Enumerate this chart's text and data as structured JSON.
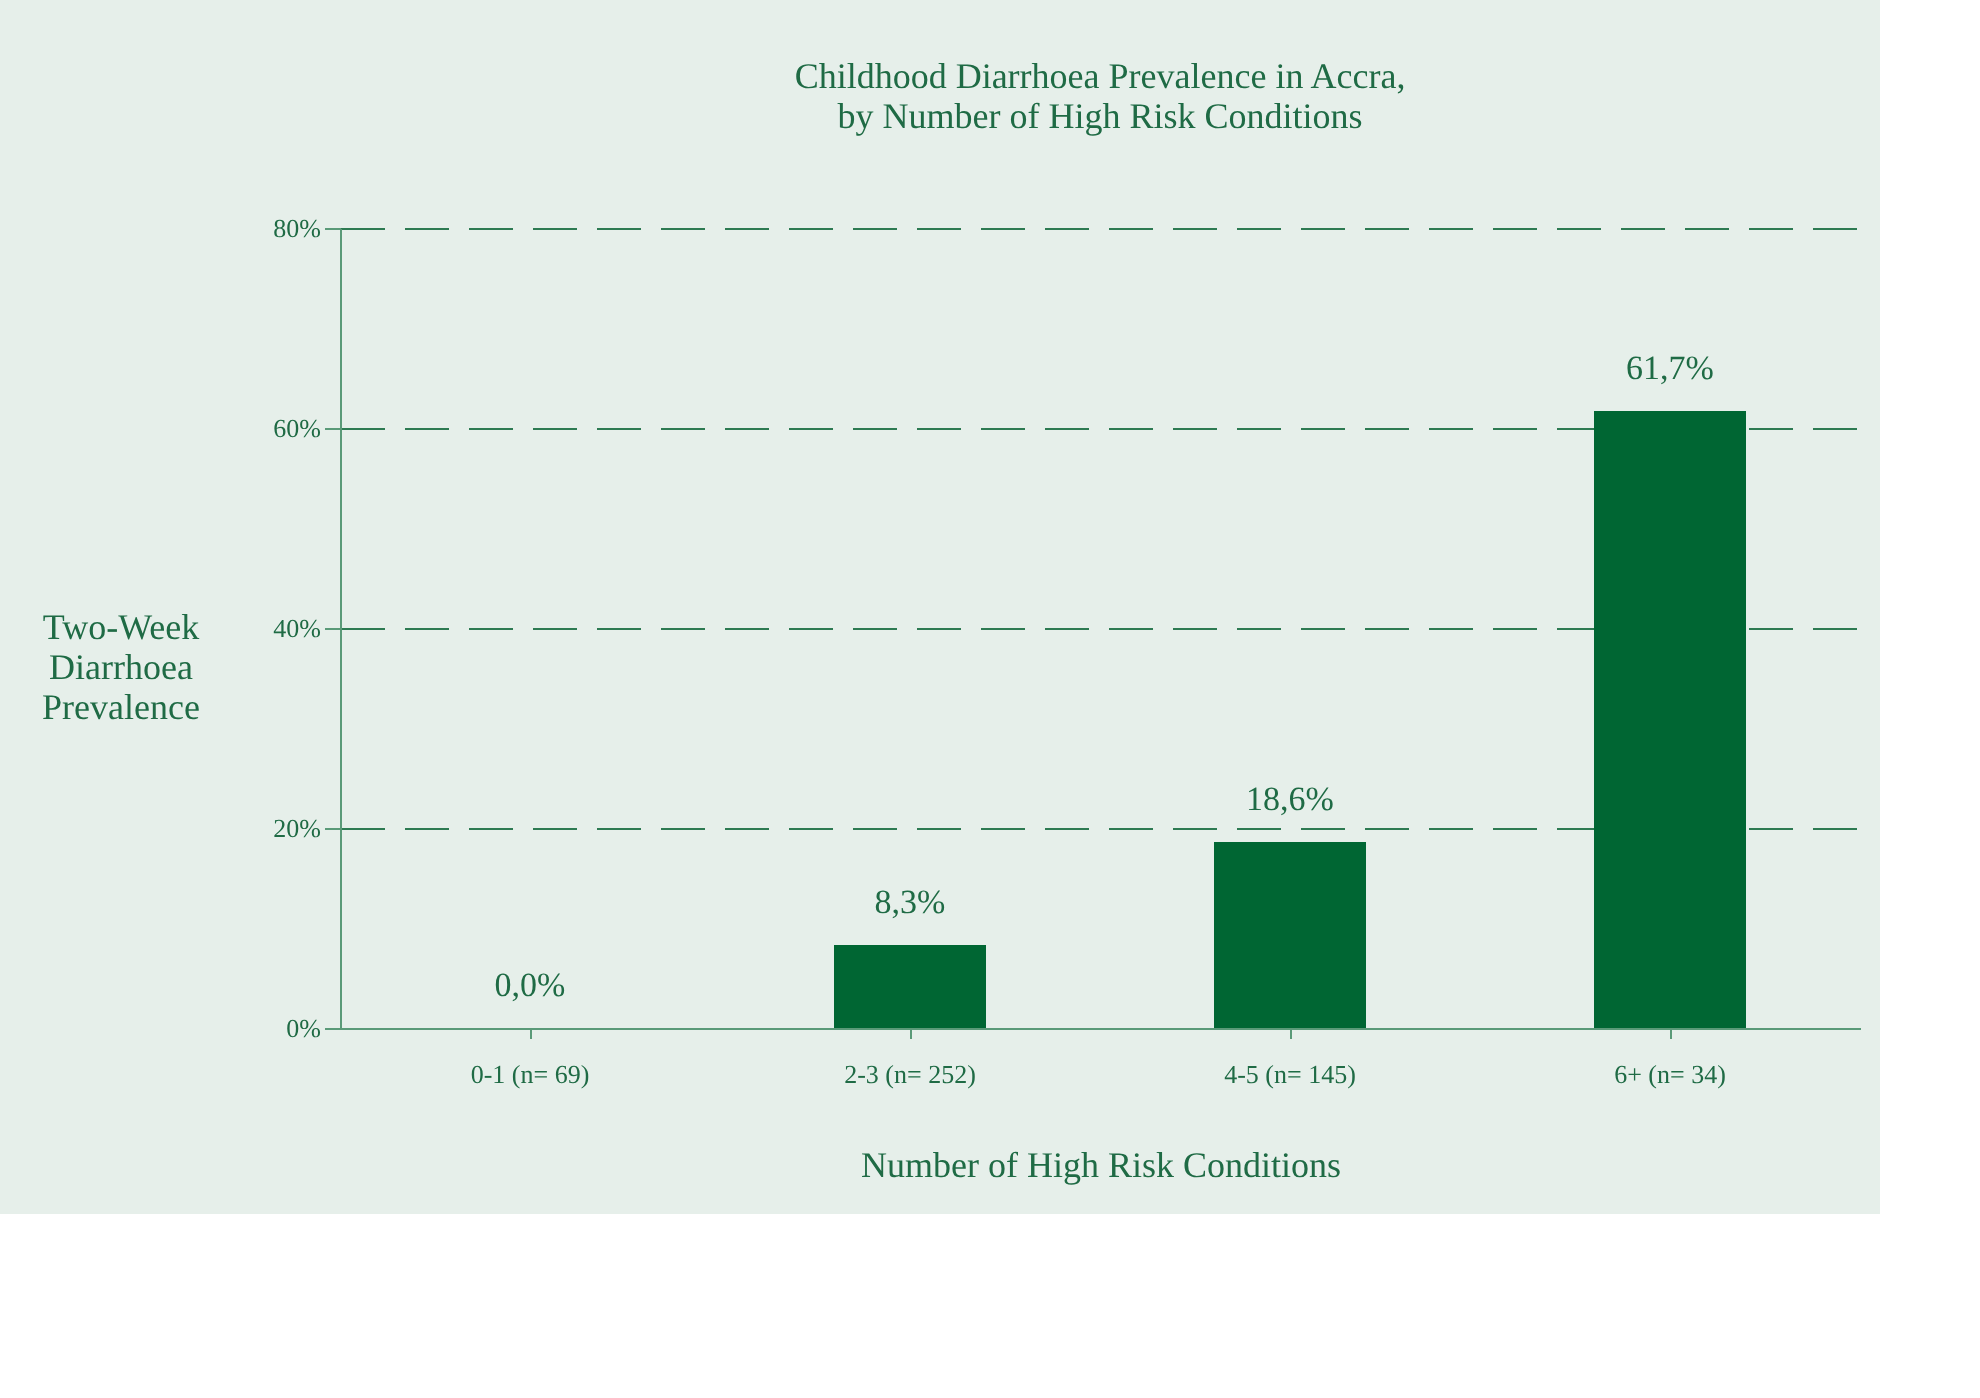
{
  "chart_data": {
    "type": "bar",
    "title": "Childhood Diarrhoea Prevalence in Accra,\nby Number of High Risk Conditions",
    "xlabel": "Number of High Risk Conditions",
    "ylabel": "Two-Week\nDiarrhoea\nPrevalence",
    "categories": [
      "0-1 (n= 69)",
      "2-3 (n= 252)",
      "4-5 (n= 145)",
      "6+    (n= 34)"
    ],
    "values": [
      0.0,
      8.3,
      18.6,
      61.7
    ],
    "color": "#006633",
    "value_labels": [
      "0,0%",
      "8,3%",
      "18,6%",
      "61,7%"
    ],
    "ylim": [
      0,
      80
    ],
    "yticks": [
      {
        "value": 0,
        "label": "0%"
      },
      {
        "value": 20,
        "label": "20%"
      },
      {
        "value": 40,
        "label": "40%"
      },
      {
        "value": 60,
        "label": "60%"
      },
      {
        "value": 80,
        "label": "80%"
      }
    ],
    "grid": "y",
    "line_style": "dashed"
  }
}
